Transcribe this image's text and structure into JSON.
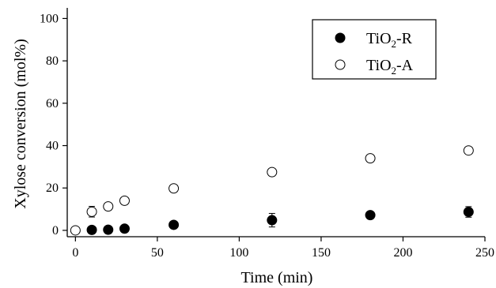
{
  "chart_data": {
    "type": "scatter",
    "xlabel": "Time (min)",
    "ylabel": "Xylose conversion (mol%)",
    "xlim": [
      -5,
      250
    ],
    "ylim": [
      -3,
      105
    ],
    "xticks": [
      0,
      50,
      100,
      150,
      200,
      250
    ],
    "yticks": [
      0,
      20,
      40,
      60,
      80,
      100
    ],
    "xtick_labels": [
      "0",
      "50",
      "100",
      "150",
      "200",
      "250"
    ],
    "ytick_labels": [
      "0",
      "20",
      "40",
      "60",
      "80",
      "100"
    ],
    "grid": false,
    "legend_position": "top-right",
    "series": [
      {
        "legend_main": "TiO",
        "legend_sub": "2",
        "legend_suffix": "-R",
        "marker": "filled-circle",
        "color": "#000000",
        "x": [
          10,
          20,
          30,
          60,
          120,
          180,
          240
        ],
        "y": [
          0.2,
          0.3,
          0.8,
          2.6,
          4.8,
          7.2,
          8.7
        ],
        "err": [
          0,
          0,
          0,
          0,
          3.2,
          1.5,
          2.5
        ]
      },
      {
        "legend_main": "TiO",
        "legend_sub": "2",
        "legend_suffix": "-A",
        "marker": "open-circle",
        "color": "#000000",
        "x": [
          0,
          10,
          20,
          30,
          60,
          120,
          180,
          240
        ],
        "y": [
          0,
          8.8,
          11.3,
          14,
          19.8,
          27.5,
          34,
          37.7
        ],
        "err": [
          0,
          2.5,
          0,
          0,
          0,
          0,
          0,
          1.2
        ]
      }
    ]
  }
}
